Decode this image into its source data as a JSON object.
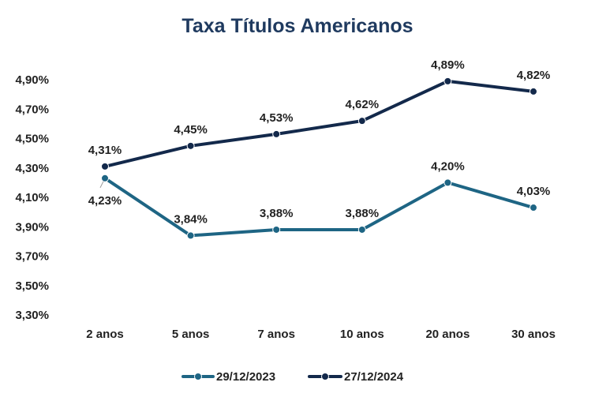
{
  "chart_data": {
    "type": "line",
    "title": "Taxa Títulos Americanos",
    "title_color": "#1f3a5f",
    "categories": [
      "2 anos",
      "5 anos",
      "7 anos",
      "10 anos",
      "20 anos",
      "30 anos"
    ],
    "ylim": [
      3.3,
      4.9
    ],
    "yticks": [
      3.3,
      3.5,
      3.7,
      3.9,
      4.1,
      4.3,
      4.5,
      4.7,
      4.9
    ],
    "ytick_labels": [
      "3,30%",
      "3,50%",
      "3,70%",
      "3,90%",
      "4,10%",
      "4,30%",
      "4,50%",
      "4,70%",
      "4,90%"
    ],
    "grid": false,
    "legend_position": "bottom",
    "series": [
      {
        "name": "29/12/2023",
        "color": "#1e6584",
        "values": [
          4.23,
          3.84,
          3.88,
          3.88,
          4.2,
          4.03
        ],
        "labels": [
          "4,23%",
          "3,84%",
          "3,88%",
          "3,88%",
          "4,20%",
          "4,03%"
        ]
      },
      {
        "name": "27/12/2024",
        "color": "#13294b",
        "values": [
          4.31,
          4.45,
          4.53,
          4.62,
          4.89,
          4.82
        ],
        "labels": [
          "4,31%",
          "4,45%",
          "4,53%",
          "4,62%",
          "4,89%",
          "4,82%"
        ]
      }
    ]
  }
}
